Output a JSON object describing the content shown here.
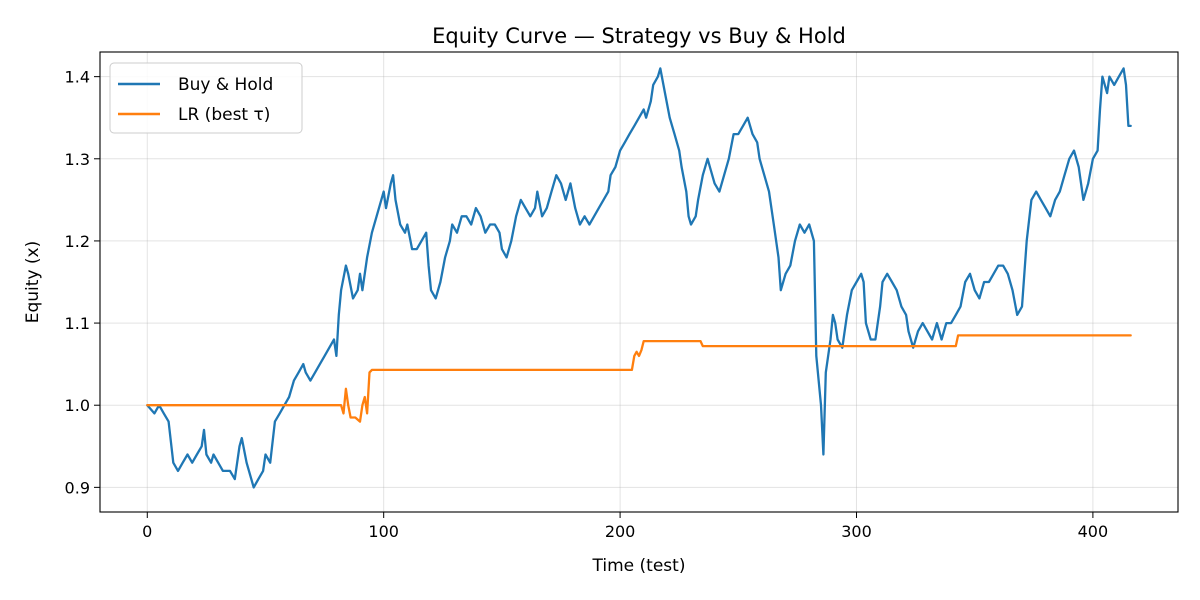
{
  "chart_data": {
    "type": "line",
    "title": "Equity Curve — Strategy vs Buy & Hold",
    "xlabel": "Time (test)",
    "ylabel": "Equity (x)",
    "xlim": [
      -20,
      436
    ],
    "ylim": [
      0.87,
      1.43
    ],
    "x_ticks": [
      0,
      100,
      200,
      300,
      400
    ],
    "y_ticks": [
      0.9,
      1.0,
      1.1,
      1.2,
      1.3,
      1.4
    ],
    "grid": true,
    "legend_position": "top-left",
    "series": [
      {
        "name": "Buy & Hold",
        "color": "#1f77b4",
        "points": [
          [
            0,
            1.0
          ],
          [
            3,
            0.99
          ],
          [
            5,
            1.0
          ],
          [
            7,
            0.99
          ],
          [
            9,
            0.98
          ],
          [
            11,
            0.93
          ],
          [
            13,
            0.92
          ],
          [
            15,
            0.93
          ],
          [
            17,
            0.94
          ],
          [
            19,
            0.93
          ],
          [
            21,
            0.94
          ],
          [
            23,
            0.95
          ],
          [
            24,
            0.97
          ],
          [
            25,
            0.94
          ],
          [
            27,
            0.93
          ],
          [
            28,
            0.94
          ],
          [
            30,
            0.93
          ],
          [
            32,
            0.92
          ],
          [
            35,
            0.92
          ],
          [
            37,
            0.91
          ],
          [
            39,
            0.95
          ],
          [
            40,
            0.96
          ],
          [
            42,
            0.93
          ],
          [
            44,
            0.91
          ],
          [
            45,
            0.9
          ],
          [
            47,
            0.91
          ],
          [
            49,
            0.92
          ],
          [
            50,
            0.94
          ],
          [
            52,
            0.93
          ],
          [
            54,
            0.98
          ],
          [
            56,
            0.99
          ],
          [
            58,
            1.0
          ],
          [
            60,
            1.01
          ],
          [
            62,
            1.03
          ],
          [
            64,
            1.04
          ],
          [
            66,
            1.05
          ],
          [
            67,
            1.04
          ],
          [
            69,
            1.03
          ],
          [
            71,
            1.04
          ],
          [
            73,
            1.05
          ],
          [
            75,
            1.06
          ],
          [
            77,
            1.07
          ],
          [
            79,
            1.08
          ],
          [
            80,
            1.06
          ],
          [
            81,
            1.11
          ],
          [
            82,
            1.14
          ],
          [
            84,
            1.17
          ],
          [
            85,
            1.16
          ],
          [
            87,
            1.13
          ],
          [
            89,
            1.14
          ],
          [
            90,
            1.16
          ],
          [
            91,
            1.14
          ],
          [
            93,
            1.18
          ],
          [
            95,
            1.21
          ],
          [
            97,
            1.23
          ],
          [
            99,
            1.25
          ],
          [
            100,
            1.26
          ],
          [
            101,
            1.24
          ],
          [
            103,
            1.27
          ],
          [
            104,
            1.28
          ],
          [
            105,
            1.25
          ],
          [
            107,
            1.22
          ],
          [
            109,
            1.21
          ],
          [
            110,
            1.22
          ],
          [
            112,
            1.19
          ],
          [
            114,
            1.19
          ],
          [
            116,
            1.2
          ],
          [
            118,
            1.21
          ],
          [
            119,
            1.17
          ],
          [
            120,
            1.14
          ],
          [
            122,
            1.13
          ],
          [
            124,
            1.15
          ],
          [
            126,
            1.18
          ],
          [
            128,
            1.2
          ],
          [
            129,
            1.22
          ],
          [
            131,
            1.21
          ],
          [
            133,
            1.23
          ],
          [
            135,
            1.23
          ],
          [
            137,
            1.22
          ],
          [
            139,
            1.24
          ],
          [
            141,
            1.23
          ],
          [
            143,
            1.21
          ],
          [
            145,
            1.22
          ],
          [
            147,
            1.22
          ],
          [
            149,
            1.21
          ],
          [
            150,
            1.19
          ],
          [
            152,
            1.18
          ],
          [
            154,
            1.2
          ],
          [
            156,
            1.23
          ],
          [
            158,
            1.25
          ],
          [
            160,
            1.24
          ],
          [
            162,
            1.23
          ],
          [
            164,
            1.24
          ],
          [
            165,
            1.26
          ],
          [
            167,
            1.23
          ],
          [
            169,
            1.24
          ],
          [
            171,
            1.26
          ],
          [
            173,
            1.28
          ],
          [
            175,
            1.27
          ],
          [
            177,
            1.25
          ],
          [
            179,
            1.27
          ],
          [
            181,
            1.24
          ],
          [
            183,
            1.22
          ],
          [
            185,
            1.23
          ],
          [
            187,
            1.22
          ],
          [
            189,
            1.23
          ],
          [
            191,
            1.24
          ],
          [
            193,
            1.25
          ],
          [
            195,
            1.26
          ],
          [
            196,
            1.28
          ],
          [
            198,
            1.29
          ],
          [
            200,
            1.31
          ],
          [
            202,
            1.32
          ],
          [
            204,
            1.33
          ],
          [
            206,
            1.34
          ],
          [
            208,
            1.35
          ],
          [
            210,
            1.36
          ],
          [
            211,
            1.35
          ],
          [
            213,
            1.37
          ],
          [
            214,
            1.39
          ],
          [
            216,
            1.4
          ],
          [
            217,
            1.41
          ],
          [
            219,
            1.38
          ],
          [
            221,
            1.35
          ],
          [
            223,
            1.33
          ],
          [
            225,
            1.31
          ],
          [
            226,
            1.29
          ],
          [
            228,
            1.26
          ],
          [
            229,
            1.23
          ],
          [
            230,
            1.22
          ],
          [
            232,
            1.23
          ],
          [
            233,
            1.25
          ],
          [
            235,
            1.28
          ],
          [
            237,
            1.3
          ],
          [
            238,
            1.29
          ],
          [
            240,
            1.27
          ],
          [
            242,
            1.26
          ],
          [
            244,
            1.28
          ],
          [
            246,
            1.3
          ],
          [
            248,
            1.33
          ],
          [
            250,
            1.33
          ],
          [
            252,
            1.34
          ],
          [
            254,
            1.35
          ],
          [
            256,
            1.33
          ],
          [
            258,
            1.32
          ],
          [
            259,
            1.3
          ],
          [
            261,
            1.28
          ],
          [
            263,
            1.26
          ],
          [
            265,
            1.22
          ],
          [
            267,
            1.18
          ],
          [
            268,
            1.14
          ],
          [
            270,
            1.16
          ],
          [
            272,
            1.17
          ],
          [
            274,
            1.2
          ],
          [
            276,
            1.22
          ],
          [
            278,
            1.21
          ],
          [
            280,
            1.22
          ],
          [
            282,
            1.2
          ],
          [
            283,
            1.06
          ],
          [
            285,
            1.0
          ],
          [
            286,
            0.94
          ],
          [
            287,
            1.04
          ],
          [
            289,
            1.08
          ],
          [
            290,
            1.11
          ],
          [
            291,
            1.1
          ],
          [
            292,
            1.08
          ],
          [
            294,
            1.07
          ],
          [
            296,
            1.11
          ],
          [
            298,
            1.14
          ],
          [
            300,
            1.15
          ],
          [
            302,
            1.16
          ],
          [
            303,
            1.15
          ],
          [
            304,
            1.1
          ],
          [
            306,
            1.08
          ],
          [
            308,
            1.08
          ],
          [
            310,
            1.12
          ],
          [
            311,
            1.15
          ],
          [
            313,
            1.16
          ],
          [
            315,
            1.15
          ],
          [
            317,
            1.14
          ],
          [
            319,
            1.12
          ],
          [
            321,
            1.11
          ],
          [
            322,
            1.09
          ],
          [
            324,
            1.07
          ],
          [
            326,
            1.09
          ],
          [
            328,
            1.1
          ],
          [
            330,
            1.09
          ],
          [
            332,
            1.08
          ],
          [
            334,
            1.1
          ],
          [
            336,
            1.08
          ],
          [
            338,
            1.1
          ],
          [
            340,
            1.1
          ],
          [
            342,
            1.11
          ],
          [
            344,
            1.12
          ],
          [
            346,
            1.15
          ],
          [
            348,
            1.16
          ],
          [
            350,
            1.14
          ],
          [
            352,
            1.13
          ],
          [
            354,
            1.15
          ],
          [
            356,
            1.15
          ],
          [
            358,
            1.16
          ],
          [
            360,
            1.17
          ],
          [
            362,
            1.17
          ],
          [
            364,
            1.16
          ],
          [
            366,
            1.14
          ],
          [
            368,
            1.11
          ],
          [
            370,
            1.12
          ],
          [
            372,
            1.2
          ],
          [
            374,
            1.25
          ],
          [
            376,
            1.26
          ],
          [
            378,
            1.25
          ],
          [
            380,
            1.24
          ],
          [
            382,
            1.23
          ],
          [
            384,
            1.25
          ],
          [
            386,
            1.26
          ],
          [
            388,
            1.28
          ],
          [
            390,
            1.3
          ],
          [
            392,
            1.31
          ],
          [
            394,
            1.29
          ],
          [
            396,
            1.25
          ],
          [
            398,
            1.27
          ],
          [
            400,
            1.3
          ],
          [
            402,
            1.31
          ],
          [
            403,
            1.36
          ],
          [
            404,
            1.4
          ],
          [
            406,
            1.38
          ],
          [
            407,
            1.4
          ],
          [
            409,
            1.39
          ],
          [
            411,
            1.4
          ],
          [
            413,
            1.41
          ],
          [
            414,
            1.39
          ],
          [
            415,
            1.34
          ],
          [
            416,
            1.34
          ]
        ]
      },
      {
        "name": "LR (best τ)",
        "color": "#ff7f0e",
        "points": [
          [
            0,
            1.0
          ],
          [
            82,
            1.0
          ],
          [
            83,
            0.99
          ],
          [
            84,
            1.02
          ],
          [
            85,
            1.0
          ],
          [
            86,
            0.985
          ],
          [
            88,
            0.985
          ],
          [
            90,
            0.98
          ],
          [
            91,
            1.0
          ],
          [
            92,
            1.01
          ],
          [
            93,
            0.99
          ],
          [
            94,
            1.04
          ],
          [
            95,
            1.043
          ],
          [
            200,
            1.043
          ],
          [
            205,
            1.043
          ],
          [
            206,
            1.06
          ],
          [
            207,
            1.065
          ],
          [
            208,
            1.06
          ],
          [
            209,
            1.067
          ],
          [
            210,
            1.078
          ],
          [
            234,
            1.078
          ],
          [
            235,
            1.072
          ],
          [
            342,
            1.072
          ],
          [
            343,
            1.085
          ],
          [
            416,
            1.085
          ]
        ]
      }
    ]
  }
}
